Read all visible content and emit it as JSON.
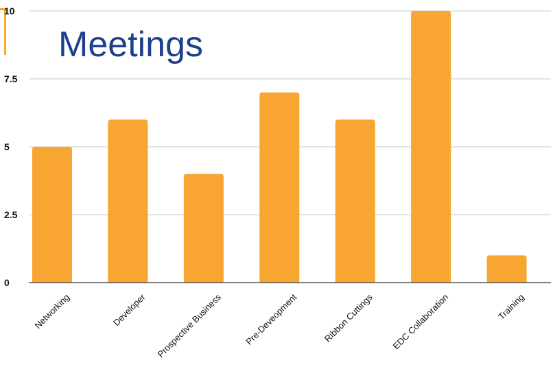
{
  "chart_data": {
    "type": "bar",
    "title": "Meetings",
    "categories": [
      "Networking",
      "Developer",
      "Prospective Business",
      "Pre-Deveopment",
      "Ribbon Cuttings",
      "EDC Collaboration",
      "Training"
    ],
    "values": [
      5,
      6,
      4,
      7,
      6,
      10,
      1
    ],
    "ylim": [
      0,
      10
    ],
    "yticks": [
      0,
      2.5,
      5,
      7.5,
      10
    ],
    "ytick_labels": [
      "0",
      "2.5",
      "5",
      "7.5",
      "10"
    ],
    "grid": true,
    "legend": "none",
    "xlabel": "",
    "ylabel": ""
  },
  "colors": {
    "bar": "#f8a532",
    "title": "#1e3f8c",
    "grid": "#c8c8c8",
    "axis": "#555555",
    "text": "#111111"
  }
}
